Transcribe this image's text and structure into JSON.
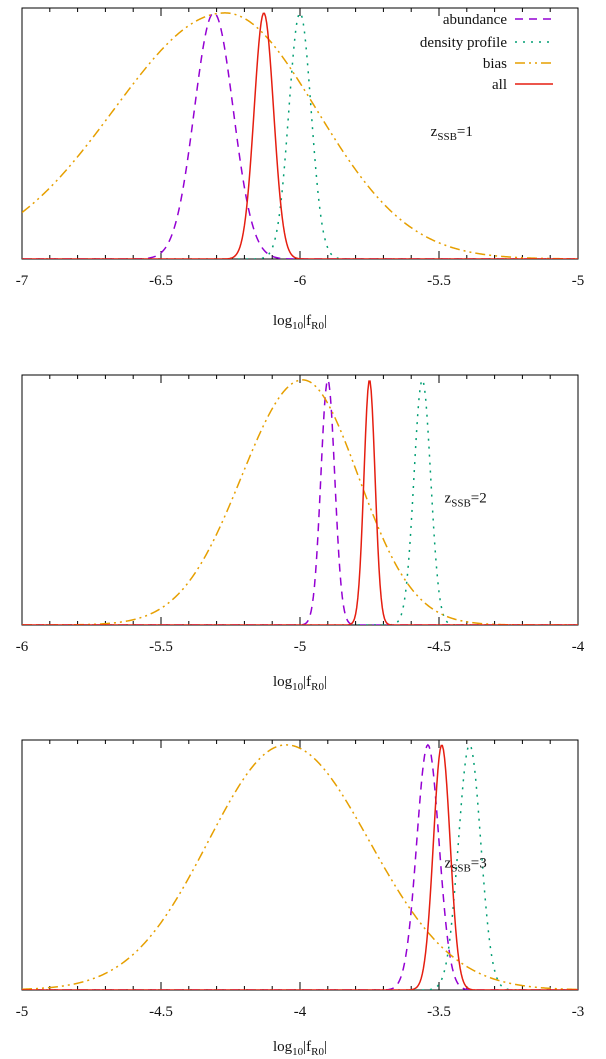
{
  "chart_data": [
    {
      "type": "line",
      "xlabel": {
        "base": "log",
        "base_sub": "10",
        "body": "|f",
        "body_sub": "R0",
        "tail": "|"
      },
      "xlim": [
        -7,
        -5
      ],
      "xticks": [
        "-7",
        "-6.5",
        "-6",
        "-5.5",
        "-5"
      ],
      "xtick_values": [
        -7,
        -6.5,
        -6,
        -5.5,
        -5
      ],
      "ylim": [
        0,
        1.02
      ],
      "annotation": {
        "base": "z",
        "sub": "SSB",
        "tail": "=1",
        "x": -5.53,
        "y": 0.5
      },
      "legend": {
        "placement": "top-right"
      },
      "series": [
        {
          "name": "abundance",
          "shape": "gauss",
          "mu": -6.31,
          "sigma": 0.07,
          "color": "#9400d3",
          "dash": "8,6"
        },
        {
          "name": "density profile",
          "shape": "gauss",
          "mu": -6.0,
          "sigma": 0.04,
          "color": "#009e73",
          "dash": "2,6"
        },
        {
          "name": "bias",
          "shape": "skewgauss",
          "mu": -6.27,
          "sigma_left": 0.4,
          "sigma_right": 0.33,
          "color": "#e69f00",
          "dash": "10,4,2,4,2,4"
        },
        {
          "name": "all",
          "shape": "gauss",
          "mu": -6.13,
          "sigma": 0.035,
          "color": "#e51e10",
          "dash": ""
        }
      ]
    },
    {
      "type": "line",
      "xlabel": {
        "base": "log",
        "base_sub": "10",
        "body": "|f",
        "body_sub": "R0",
        "tail": "|"
      },
      "xlim": [
        -6,
        -4
      ],
      "xticks": [
        "-6",
        "-5.5",
        "-5",
        "-4.5",
        "-4"
      ],
      "xtick_values": [
        -6,
        -5.5,
        -5,
        -4.5,
        -4
      ],
      "ylim": [
        0,
        1.02
      ],
      "annotation": {
        "base": "z",
        "sub": "SSB",
        "tail": "=2",
        "x": -4.48,
        "y": 0.5
      },
      "series": [
        {
          "name": "abundance",
          "shape": "gauss",
          "mu": -4.9,
          "sigma": 0.025,
          "color": "#9400d3",
          "dash": "8,6"
        },
        {
          "name": "density profile",
          "shape": "gauss",
          "mu": -4.56,
          "sigma": 0.03,
          "color": "#009e73",
          "dash": "2,6"
        },
        {
          "name": "bias",
          "shape": "skewgauss",
          "mu": -4.99,
          "sigma_left": 0.22,
          "sigma_right": 0.2,
          "color": "#e69f00",
          "dash": "10,4,2,4,2,4"
        },
        {
          "name": "all",
          "shape": "gauss",
          "mu": -4.75,
          "sigma": 0.02,
          "color": "#e51e10",
          "dash": ""
        }
      ]
    },
    {
      "type": "line",
      "xlabel": {
        "base": "log",
        "base_sub": "10",
        "body": "|f",
        "body_sub": "R0",
        "tail": "|"
      },
      "xlim": [
        -5,
        -3
      ],
      "xticks": [
        "-5",
        "-4.5",
        "-4",
        "-3.5",
        "-3"
      ],
      "xtick_values": [
        -5,
        -4.5,
        -4,
        -3.5,
        -3
      ],
      "ylim": [
        0,
        1.02
      ],
      "annotation": {
        "base": "z",
        "sub": "SSB",
        "tail": "=3",
        "x": -3.48,
        "y": 0.5
      },
      "series": [
        {
          "name": "abundance",
          "shape": "gauss",
          "mu": -3.54,
          "sigma": 0.04,
          "color": "#9400d3",
          "dash": "8,6"
        },
        {
          "name": "density profile",
          "shape": "gauss",
          "mu": -3.39,
          "sigma": 0.04,
          "color": "#009e73",
          "dash": "2,6"
        },
        {
          "name": "bias",
          "shape": "skewgauss",
          "mu": -4.05,
          "sigma_left": 0.28,
          "sigma_right": 0.3,
          "color": "#e69f00",
          "dash": "10,4,2,4,2,4"
        },
        {
          "name": "all",
          "shape": "gauss",
          "mu": -3.49,
          "sigma": 0.03,
          "color": "#e51e10",
          "dash": ""
        }
      ]
    }
  ]
}
